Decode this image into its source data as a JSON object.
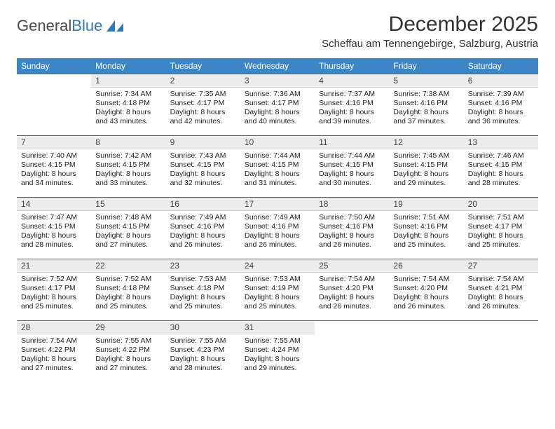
{
  "logo": {
    "text_gray": "General",
    "text_blue": "Blue"
  },
  "title": "December 2025",
  "location": "Scheffau am Tennengebirge, Salzburg, Austria",
  "colors": {
    "header_bg": "#3d86c6",
    "header_text": "#ffffff",
    "daynum_bg": "#ececec",
    "row_border": "#2f6fa8",
    "logo_gray": "#4a4a4a",
    "logo_blue": "#2f79bd",
    "page_bg": "#ffffff",
    "body_text": "#222222"
  },
  "typography": {
    "title_fontsize": 30,
    "location_fontsize": 15,
    "dayheader_fontsize": 12,
    "daynum_fontsize": 12,
    "body_fontsize": 10.5
  },
  "layout": {
    "columns": 7,
    "weeks": 5,
    "first_weekday_offset": 1
  },
  "weekdays": [
    "Sunday",
    "Monday",
    "Tuesday",
    "Wednesday",
    "Thursday",
    "Friday",
    "Saturday"
  ],
  "days": [
    {
      "n": 1,
      "sunrise": "Sunrise: 7:34 AM",
      "sunset": "Sunset: 4:18 PM",
      "dl1": "Daylight: 8 hours",
      "dl2": "and 43 minutes."
    },
    {
      "n": 2,
      "sunrise": "Sunrise: 7:35 AM",
      "sunset": "Sunset: 4:17 PM",
      "dl1": "Daylight: 8 hours",
      "dl2": "and 42 minutes."
    },
    {
      "n": 3,
      "sunrise": "Sunrise: 7:36 AM",
      "sunset": "Sunset: 4:17 PM",
      "dl1": "Daylight: 8 hours",
      "dl2": "and 40 minutes."
    },
    {
      "n": 4,
      "sunrise": "Sunrise: 7:37 AM",
      "sunset": "Sunset: 4:16 PM",
      "dl1": "Daylight: 8 hours",
      "dl2": "and 39 minutes."
    },
    {
      "n": 5,
      "sunrise": "Sunrise: 7:38 AM",
      "sunset": "Sunset: 4:16 PM",
      "dl1": "Daylight: 8 hours",
      "dl2": "and 37 minutes."
    },
    {
      "n": 6,
      "sunrise": "Sunrise: 7:39 AM",
      "sunset": "Sunset: 4:16 PM",
      "dl1": "Daylight: 8 hours",
      "dl2": "and 36 minutes."
    },
    {
      "n": 7,
      "sunrise": "Sunrise: 7:40 AM",
      "sunset": "Sunset: 4:15 PM",
      "dl1": "Daylight: 8 hours",
      "dl2": "and 34 minutes."
    },
    {
      "n": 8,
      "sunrise": "Sunrise: 7:42 AM",
      "sunset": "Sunset: 4:15 PM",
      "dl1": "Daylight: 8 hours",
      "dl2": "and 33 minutes."
    },
    {
      "n": 9,
      "sunrise": "Sunrise: 7:43 AM",
      "sunset": "Sunset: 4:15 PM",
      "dl1": "Daylight: 8 hours",
      "dl2": "and 32 minutes."
    },
    {
      "n": 10,
      "sunrise": "Sunrise: 7:44 AM",
      "sunset": "Sunset: 4:15 PM",
      "dl1": "Daylight: 8 hours",
      "dl2": "and 31 minutes."
    },
    {
      "n": 11,
      "sunrise": "Sunrise: 7:44 AM",
      "sunset": "Sunset: 4:15 PM",
      "dl1": "Daylight: 8 hours",
      "dl2": "and 30 minutes."
    },
    {
      "n": 12,
      "sunrise": "Sunrise: 7:45 AM",
      "sunset": "Sunset: 4:15 PM",
      "dl1": "Daylight: 8 hours",
      "dl2": "and 29 minutes."
    },
    {
      "n": 13,
      "sunrise": "Sunrise: 7:46 AM",
      "sunset": "Sunset: 4:15 PM",
      "dl1": "Daylight: 8 hours",
      "dl2": "and 28 minutes."
    },
    {
      "n": 14,
      "sunrise": "Sunrise: 7:47 AM",
      "sunset": "Sunset: 4:15 PM",
      "dl1": "Daylight: 8 hours",
      "dl2": "and 28 minutes."
    },
    {
      "n": 15,
      "sunrise": "Sunrise: 7:48 AM",
      "sunset": "Sunset: 4:15 PM",
      "dl1": "Daylight: 8 hours",
      "dl2": "and 27 minutes."
    },
    {
      "n": 16,
      "sunrise": "Sunrise: 7:49 AM",
      "sunset": "Sunset: 4:16 PM",
      "dl1": "Daylight: 8 hours",
      "dl2": "and 26 minutes."
    },
    {
      "n": 17,
      "sunrise": "Sunrise: 7:49 AM",
      "sunset": "Sunset: 4:16 PM",
      "dl1": "Daylight: 8 hours",
      "dl2": "and 26 minutes."
    },
    {
      "n": 18,
      "sunrise": "Sunrise: 7:50 AM",
      "sunset": "Sunset: 4:16 PM",
      "dl1": "Daylight: 8 hours",
      "dl2": "and 26 minutes."
    },
    {
      "n": 19,
      "sunrise": "Sunrise: 7:51 AM",
      "sunset": "Sunset: 4:16 PM",
      "dl1": "Daylight: 8 hours",
      "dl2": "and 25 minutes."
    },
    {
      "n": 20,
      "sunrise": "Sunrise: 7:51 AM",
      "sunset": "Sunset: 4:17 PM",
      "dl1": "Daylight: 8 hours",
      "dl2": "and 25 minutes."
    },
    {
      "n": 21,
      "sunrise": "Sunrise: 7:52 AM",
      "sunset": "Sunset: 4:17 PM",
      "dl1": "Daylight: 8 hours",
      "dl2": "and 25 minutes."
    },
    {
      "n": 22,
      "sunrise": "Sunrise: 7:52 AM",
      "sunset": "Sunset: 4:18 PM",
      "dl1": "Daylight: 8 hours",
      "dl2": "and 25 minutes."
    },
    {
      "n": 23,
      "sunrise": "Sunrise: 7:53 AM",
      "sunset": "Sunset: 4:18 PM",
      "dl1": "Daylight: 8 hours",
      "dl2": "and 25 minutes."
    },
    {
      "n": 24,
      "sunrise": "Sunrise: 7:53 AM",
      "sunset": "Sunset: 4:19 PM",
      "dl1": "Daylight: 8 hours",
      "dl2": "and 25 minutes."
    },
    {
      "n": 25,
      "sunrise": "Sunrise: 7:54 AM",
      "sunset": "Sunset: 4:20 PM",
      "dl1": "Daylight: 8 hours",
      "dl2": "and 26 minutes."
    },
    {
      "n": 26,
      "sunrise": "Sunrise: 7:54 AM",
      "sunset": "Sunset: 4:20 PM",
      "dl1": "Daylight: 8 hours",
      "dl2": "and 26 minutes."
    },
    {
      "n": 27,
      "sunrise": "Sunrise: 7:54 AM",
      "sunset": "Sunset: 4:21 PM",
      "dl1": "Daylight: 8 hours",
      "dl2": "and 26 minutes."
    },
    {
      "n": 28,
      "sunrise": "Sunrise: 7:54 AM",
      "sunset": "Sunset: 4:22 PM",
      "dl1": "Daylight: 8 hours",
      "dl2": "and 27 minutes."
    },
    {
      "n": 29,
      "sunrise": "Sunrise: 7:55 AM",
      "sunset": "Sunset: 4:22 PM",
      "dl1": "Daylight: 8 hours",
      "dl2": "and 27 minutes."
    },
    {
      "n": 30,
      "sunrise": "Sunrise: 7:55 AM",
      "sunset": "Sunset: 4:23 PM",
      "dl1": "Daylight: 8 hours",
      "dl2": "and 28 minutes."
    },
    {
      "n": 31,
      "sunrise": "Sunrise: 7:55 AM",
      "sunset": "Sunset: 4:24 PM",
      "dl1": "Daylight: 8 hours",
      "dl2": "and 29 minutes."
    }
  ]
}
